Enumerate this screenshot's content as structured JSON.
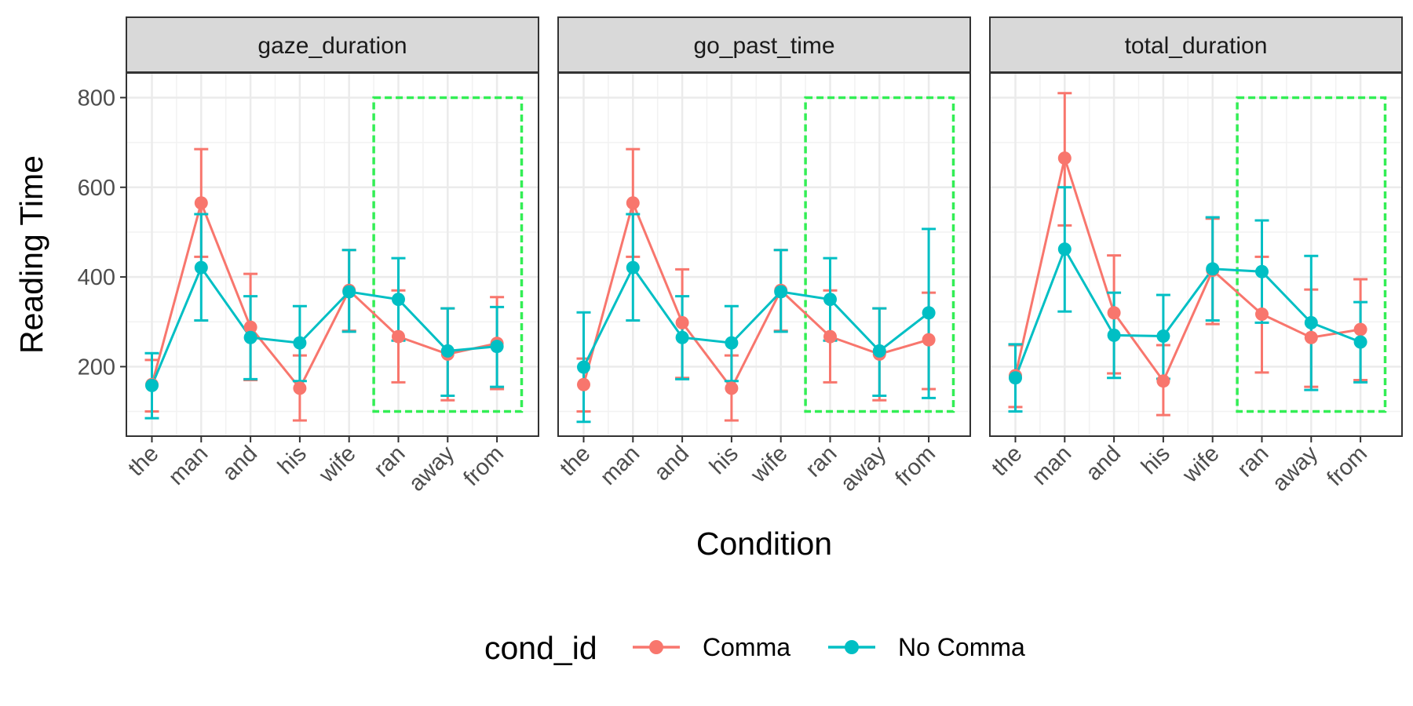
{
  "chart_data": {
    "type": "line",
    "facets": [
      "gaze_duration",
      "go_past_time",
      "total_duration"
    ],
    "categories": [
      "the",
      "man",
      "and",
      "his",
      "wife",
      "ran",
      "away",
      "from"
    ],
    "xlabel": "Condition",
    "ylabel": "Reading Time",
    "ylim": [
      45,
      855
    ],
    "yticks": [
      200,
      400,
      600,
      800
    ],
    "grid": true,
    "legend": {
      "title": "cond_id",
      "position": "bottom"
    },
    "highlight_box": {
      "from_category": "ran",
      "to_category": "from",
      "y_range": [
        100,
        800
      ],
      "color": "#33ee55",
      "style": "dashed"
    },
    "series": [
      {
        "name": "Comma",
        "color": "#f8766d",
        "panels": [
          {
            "values": [
              160,
              565,
              288,
              152,
              370,
              267,
              228,
              252
            ],
            "lower": [
              100,
              445,
              170,
              80,
              280,
              165,
              125,
              150
            ],
            "upper": [
              215,
              685,
              407,
              225,
              460,
              370,
              330,
              355
            ]
          },
          {
            "values": [
              160,
              565,
              298,
              152,
              370,
              267,
              228,
              260
            ],
            "lower": [
              100,
              445,
              175,
              80,
              280,
              165,
              125,
              150
            ],
            "upper": [
              218,
              685,
              417,
              225,
              460,
              370,
              330,
              365
            ]
          },
          {
            "values": [
              180,
              665,
              320,
              168,
              415,
              317,
              265,
              283
            ],
            "lower": [
              110,
              515,
              185,
              92,
              295,
              187,
              155,
              170
            ],
            "upper": [
              248,
              810,
              448,
              248,
              530,
              445,
              372,
              395
            ]
          }
        ]
      },
      {
        "name": "No Comma",
        "color": "#00bfc4",
        "panels": [
          {
            "values": [
              158,
              421,
              265,
              253,
              367,
              350,
              235,
              245
            ],
            "lower": [
              85,
              303,
              172,
              168,
              278,
              258,
              135,
              155
            ],
            "upper": [
              230,
              540,
              357,
              335,
              460,
              442,
              330,
              333
            ]
          },
          {
            "values": [
              199,
              421,
              265,
              253,
              367,
              350,
              235,
              320
            ],
            "lower": [
              77,
              303,
              172,
              168,
              278,
              258,
              135,
              130
            ],
            "upper": [
              321,
              540,
              357,
              335,
              460,
              442,
              330,
              507
            ]
          },
          {
            "values": [
              175,
              462,
              270,
              268,
              418,
              412,
              298,
              255
            ],
            "lower": [
              100,
              323,
              175,
              173,
              303,
              298,
              148,
              165
            ],
            "upper": [
              250,
              600,
              365,
              360,
              533,
              526,
              447,
              344
            ]
          }
        ]
      }
    ]
  }
}
